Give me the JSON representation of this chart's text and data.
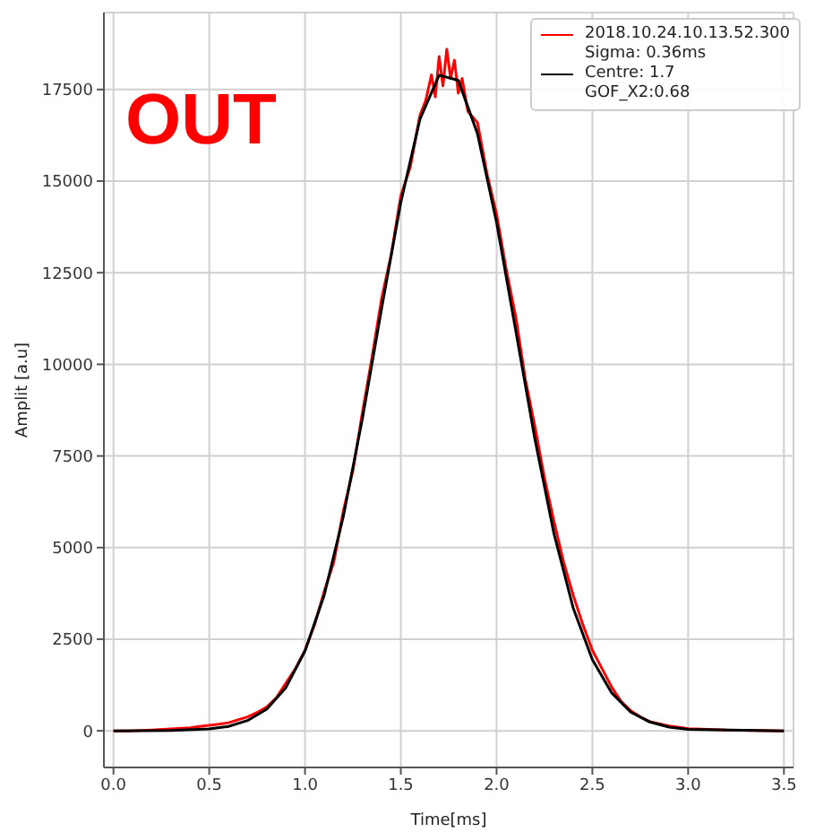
{
  "chart_data": {
    "type": "line",
    "xlabel": "Time[ms]",
    "ylabel": "Amplit [a.u]",
    "xlim": [
      -0.05,
      3.55
    ],
    "ylim": [
      -1000,
      19600
    ],
    "xticks": [
      {
        "value": 0,
        "label": "0.0"
      },
      {
        "value": 0.5,
        "label": "0.5"
      },
      {
        "value": 1,
        "label": "1.0"
      },
      {
        "value": 1.5,
        "label": "1.5"
      },
      {
        "value": 2,
        "label": "2.0"
      },
      {
        "value": 2.5,
        "label": "2.5"
      },
      {
        "value": 3,
        "label": "3.0"
      },
      {
        "value": 3.5,
        "label": "3.5"
      }
    ],
    "yticks": [
      0,
      2500,
      5000,
      7500,
      10000,
      12500,
      15000,
      17500
    ],
    "grid": true,
    "legend": "top right",
    "marker": "none",
    "line_style": "solid",
    "annotations": [
      "OUT"
    ],
    "series": [
      {
        "name": "2018.10.24.10.13.52.300",
        "color": "#ff0000",
        "x": [
          0,
          0.1,
          0.2,
          0.3,
          0.4,
          0.45,
          0.5,
          0.55,
          0.6,
          0.65,
          0.7,
          0.75,
          0.8,
          0.85,
          0.9,
          0.95,
          1.0,
          1.05,
          1.1,
          1.15,
          1.2,
          1.25,
          1.3,
          1.35,
          1.4,
          1.45,
          1.5,
          1.55,
          1.6,
          1.63,
          1.66,
          1.68,
          1.7,
          1.72,
          1.74,
          1.76,
          1.78,
          1.8,
          1.82,
          1.85,
          1.9,
          1.95,
          2.0,
          2.05,
          2.1,
          2.15,
          2.2,
          2.25,
          2.3,
          2.35,
          2.4,
          2.45,
          2.5,
          2.55,
          2.6,
          2.65,
          2.7,
          2.75,
          2.8,
          2.9,
          3.0,
          3.2,
          3.5
        ],
        "values": [
          0,
          0,
          20,
          50,
          80,
          120,
          150,
          180,
          220,
          300,
          380,
          500,
          650,
          900,
          1300,
          1700,
          2200,
          2900,
          3800,
          4600,
          6000,
          7100,
          8700,
          10200,
          11800,
          13000,
          14600,
          15400,
          16800,
          17200,
          17900,
          17300,
          18400,
          17600,
          18600,
          17800,
          18300,
          17400,
          17800,
          16900,
          16600,
          15200,
          14100,
          12600,
          11300,
          9600,
          8300,
          6900,
          5700,
          4600,
          3700,
          2900,
          2200,
          1700,
          1200,
          800,
          550,
          380,
          250,
          130,
          60,
          20,
          0
        ]
      },
      {
        "name": "Sigma: 0.36ms\nCentre: 1.7\nGOF_X2:0.68",
        "color": "#000000",
        "x": [
          0,
          0.3,
          0.5,
          0.6,
          0.7,
          0.8,
          0.9,
          1.0,
          1.1,
          1.2,
          1.3,
          1.4,
          1.5,
          1.6,
          1.7,
          1.8,
          1.9,
          2.0,
          2.1,
          2.2,
          2.3,
          2.4,
          2.5,
          2.6,
          2.7,
          2.8,
          2.9,
          3.0,
          3.5
        ],
        "values": [
          0,
          10,
          50,
          120,
          280,
          590,
          1180,
          2180,
          3700,
          5850,
          8530,
          11530,
          14420,
          16690,
          17890,
          17750,
          16300,
          13870,
          10920,
          7960,
          5370,
          3350,
          1940,
          1040,
          510,
          240,
          100,
          40,
          0
        ]
      }
    ]
  }
}
